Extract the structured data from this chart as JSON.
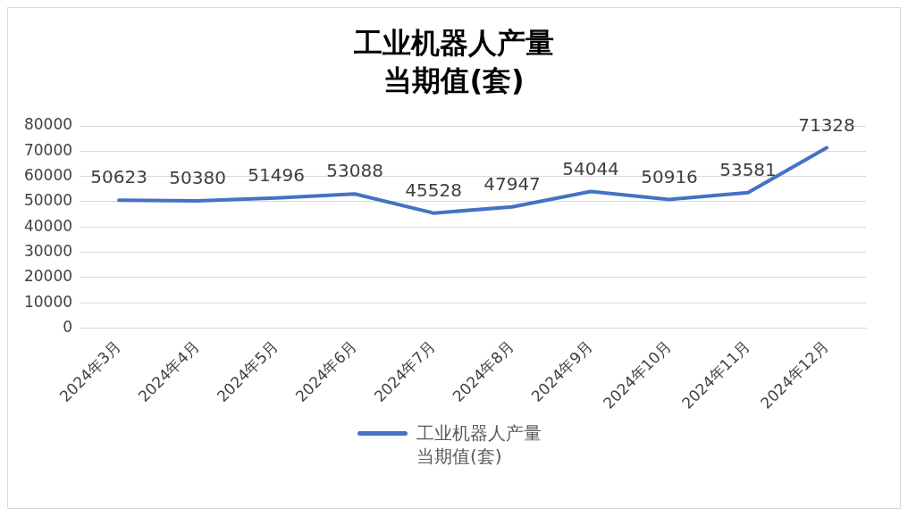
{
  "chart_data": {
    "type": "line",
    "title": "工业机器人产量当期值(套)",
    "categories": [
      "2024年3月",
      "2024年4月",
      "2024年5月",
      "2024年6月",
      "2024年7月",
      "2024年8月",
      "2024年9月",
      "2024年10月",
      "2024年11月",
      "2024年12月"
    ],
    "series": [
      {
        "name": "工业机器人产量当期值(套)",
        "color": "#4472c4",
        "values": [
          50623,
          50380,
          51496,
          53088,
          45528,
          47947,
          54044,
          50916,
          53581,
          71328
        ]
      }
    ],
    "ylim": [
      0,
      80000
    ],
    "yticks": [
      0,
      10000,
      20000,
      30000,
      40000,
      50000,
      60000,
      70000,
      80000
    ],
    "grid": "y",
    "legend": "bottom",
    "marker": "none",
    "data_labels": true
  }
}
